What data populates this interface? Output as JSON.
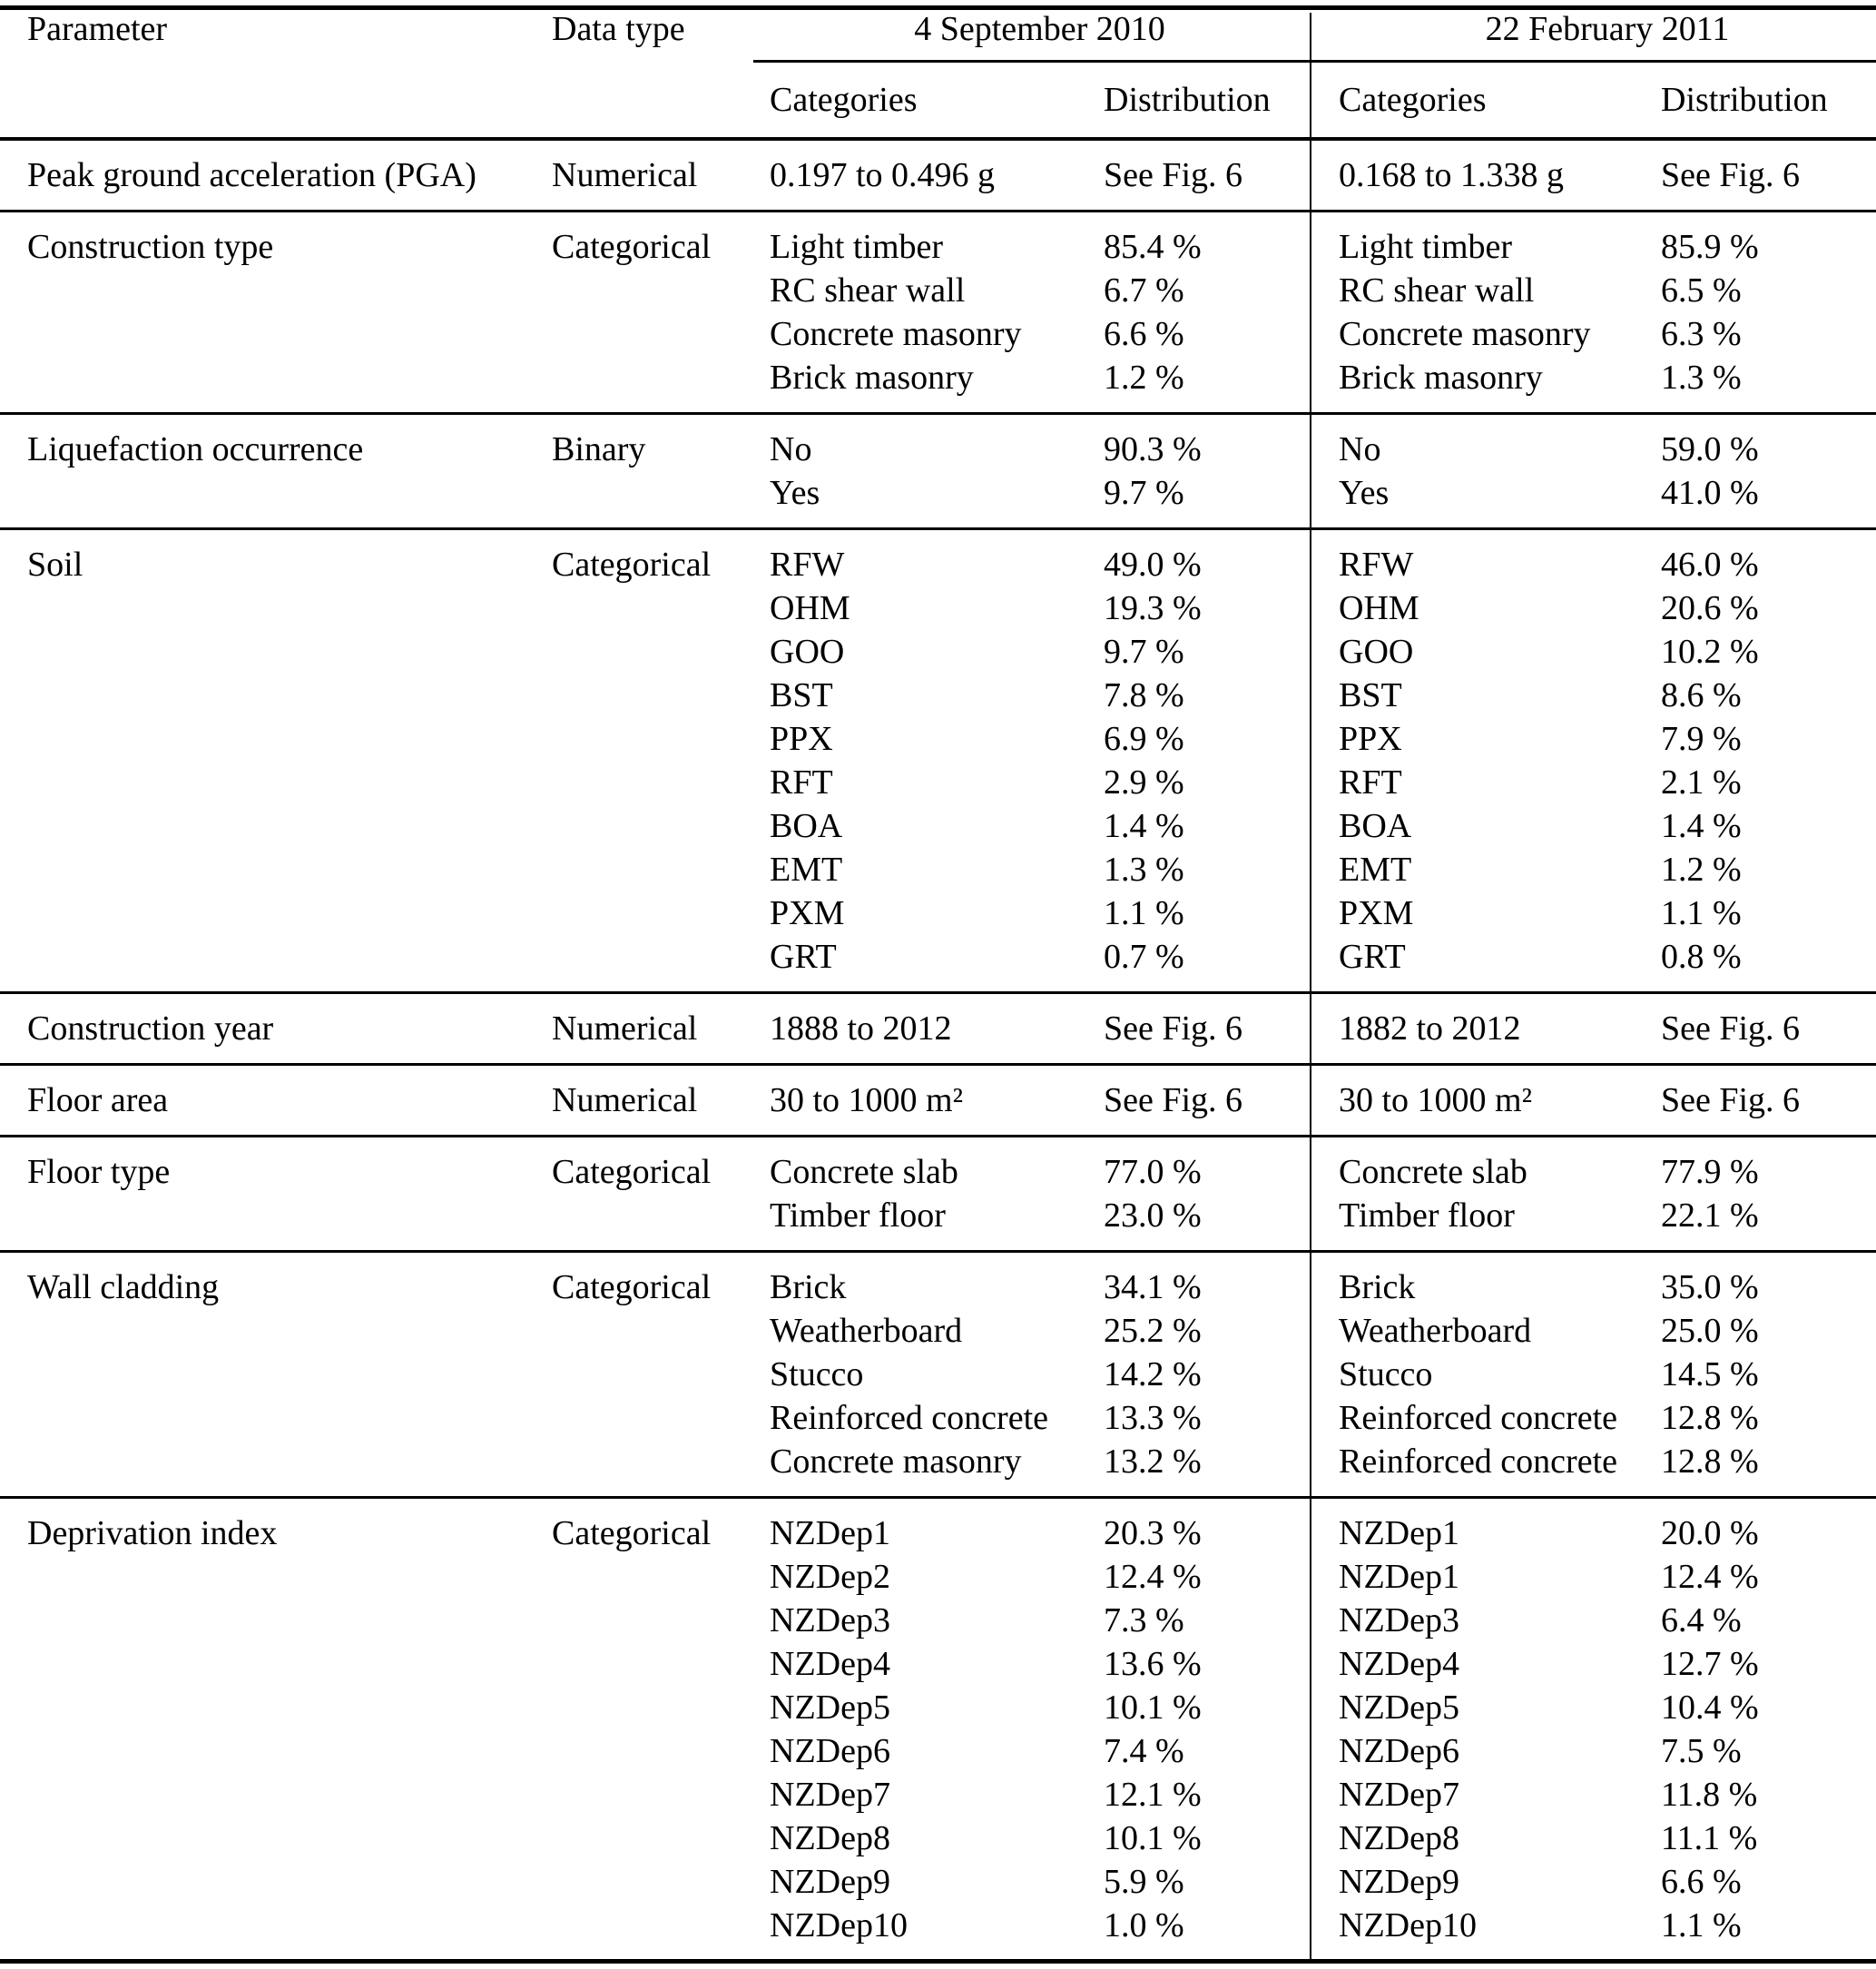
{
  "colors": {
    "background": "#ffffff",
    "text": "#000000",
    "rules": "#000000"
  },
  "table": {
    "headers": {
      "parameter": "Parameter",
      "data_type": "Data type",
      "group_2010": "4 September 2010",
      "group_2011": "22 February 2011",
      "categories_label": "Categories",
      "distribution_label": "Distribution"
    },
    "rows": [
      {
        "parameter": "Peak ground acceleration (PGA)",
        "data_type": "Numerical",
        "sep2010": {
          "categories": [
            "0.197 to 0.496 g"
          ],
          "distribution": [
            "See Fig. 6"
          ]
        },
        "feb2011": {
          "categories": [
            "0.168 to 1.338 g"
          ],
          "distribution": [
            "See Fig. 6"
          ]
        }
      },
      {
        "parameter": "Construction type",
        "data_type": "Categorical",
        "sep2010": {
          "categories": [
            "Light timber",
            "RC shear wall",
            "Concrete masonry",
            "Brick masonry"
          ],
          "distribution": [
            "85.4 %",
            "6.7 %",
            "6.6 %",
            "1.2 %"
          ]
        },
        "feb2011": {
          "categories": [
            "Light timber",
            "RC shear wall",
            "Concrete masonry",
            "Brick masonry"
          ],
          "distribution": [
            "85.9 %",
            "6.5 %",
            "6.3 %",
            "1.3 %"
          ]
        }
      },
      {
        "parameter": "Liquefaction occurrence",
        "data_type": "Binary",
        "sep2010": {
          "categories": [
            "No",
            "Yes"
          ],
          "distribution": [
            "90.3 %",
            "9.7 %"
          ]
        },
        "feb2011": {
          "categories": [
            "No",
            "Yes"
          ],
          "distribution": [
            "59.0 %",
            "41.0 %"
          ]
        }
      },
      {
        "parameter": "Soil",
        "data_type": "Categorical",
        "sep2010": {
          "categories": [
            "RFW",
            "OHM",
            "GOO",
            "BST",
            "PPX",
            "RFT",
            "BOA",
            "EMT",
            "PXM",
            "GRT"
          ],
          "distribution": [
            "49.0 %",
            "19.3 %",
            "9.7 %",
            "7.8 %",
            "6.9 %",
            "2.9 %",
            "1.4 %",
            "1.3 %",
            "1.1 %",
            "0.7 %"
          ]
        },
        "feb2011": {
          "categories": [
            "RFW",
            "OHM",
            "GOO",
            "BST",
            "PPX",
            "RFT",
            "BOA",
            "EMT",
            "PXM",
            "GRT"
          ],
          "distribution": [
            "46.0 %",
            "20.6 %",
            "10.2 %",
            "8.6 %",
            "7.9 %",
            "2.1 %",
            "1.4 %",
            "1.2 %",
            "1.1 %",
            "0.8 %"
          ]
        }
      },
      {
        "parameter": "Construction year",
        "data_type": "Numerical",
        "sep2010": {
          "categories": [
            "1888 to 2012"
          ],
          "distribution": [
            "See Fig. 6"
          ]
        },
        "feb2011": {
          "categories": [
            "1882 to 2012"
          ],
          "distribution": [
            "See Fig. 6"
          ]
        }
      },
      {
        "parameter": "Floor area",
        "data_type": "Numerical",
        "sep2010": {
          "categories": [
            "30 to 1000 m²"
          ],
          "distribution": [
            "See Fig. 6"
          ]
        },
        "feb2011": {
          "categories": [
            "30 to 1000 m²"
          ],
          "distribution": [
            "See Fig. 6"
          ]
        }
      },
      {
        "parameter": "Floor type",
        "data_type": "Categorical",
        "sep2010": {
          "categories": [
            "Concrete slab",
            "Timber floor"
          ],
          "distribution": [
            "77.0 %",
            "23.0 %"
          ]
        },
        "feb2011": {
          "categories": [
            "Concrete slab",
            "Timber floor"
          ],
          "distribution": [
            "77.9 %",
            "22.1 %"
          ]
        }
      },
      {
        "parameter": "Wall cladding",
        "data_type": "Categorical",
        "sep2010": {
          "categories": [
            "Brick",
            "Weatherboard",
            "Stucco",
            "Reinforced concrete",
            "Concrete masonry"
          ],
          "distribution": [
            "34.1 %",
            "25.2 %",
            "14.2 %",
            "13.3 %",
            "13.2 %"
          ]
        },
        "feb2011": {
          "categories": [
            "Brick",
            "Weatherboard",
            "Stucco",
            "Reinforced concrete",
            "Reinforced concrete"
          ],
          "distribution": [
            "35.0 %",
            "25.0 %",
            "14.5 %",
            "12.8 %",
            "12.8 %"
          ]
        }
      },
      {
        "parameter": "Deprivation index",
        "data_type": "Categorical",
        "sep2010": {
          "categories": [
            "NZDep1",
            "NZDep2",
            "NZDep3",
            "NZDep4",
            "NZDep5",
            "NZDep6",
            "NZDep7",
            "NZDep8",
            "NZDep9",
            "NZDep10"
          ],
          "distribution": [
            "20.3 %",
            "12.4 %",
            "7.3 %",
            "13.6 %",
            "10.1 %",
            "7.4 %",
            "12.1 %",
            "10.1 %",
            "5.9 %",
            "1.0 %"
          ]
        },
        "feb2011": {
          "categories": [
            "NZDep1",
            "NZDep1",
            "NZDep3",
            "NZDep4",
            "NZDep5",
            "NZDep6",
            "NZDep7",
            "NZDep8",
            "NZDep9",
            "NZDep10"
          ],
          "distribution": [
            "20.0 %",
            "12.4 %",
            "6.4 %",
            "12.7 %",
            "10.4 %",
            "7.5 %",
            "11.8 %",
            "11.1 %",
            "6.6 %",
            "1.1 %"
          ]
        }
      }
    ]
  }
}
